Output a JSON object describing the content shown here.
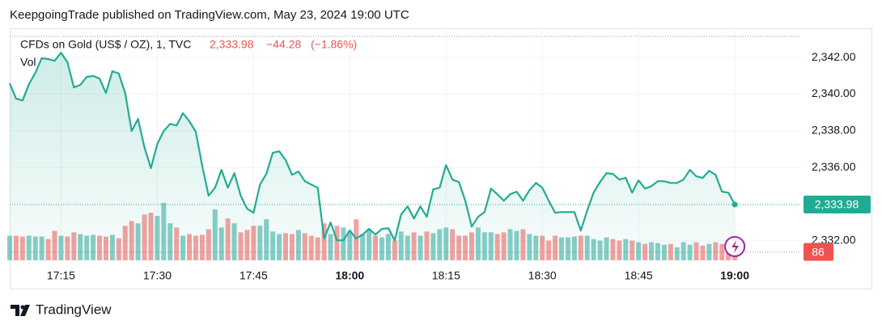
{
  "chart_data": {
    "type": "line",
    "title": "KeepgoingTrade published on TradingView.com, May 23, 2024 19:00 UTC",
    "symbol": "CFDs on Gold (US$ / OZ), 1, TVC",
    "last_label": "2,333.98",
    "change": "−44.28",
    "change_pct": "(−1.86%)",
    "volume_label": "Vol",
    "brand": "TradingView",
    "color": "#22ab94",
    "up_color": "#26a69a",
    "down_color": "#ef5350",
    "x": [
      "17:07",
      "17:08",
      "17:09",
      "17:10",
      "17:11",
      "17:12",
      "17:13",
      "17:14",
      "17:15",
      "17:16",
      "17:17",
      "17:18",
      "17:19",
      "17:20",
      "17:21",
      "17:22",
      "17:23",
      "17:24",
      "17:25",
      "17:26",
      "17:27",
      "17:28",
      "17:29",
      "17:30",
      "17:31",
      "17:32",
      "17:33",
      "17:34",
      "17:35",
      "17:36",
      "17:37",
      "17:38",
      "17:39",
      "17:40",
      "17:41",
      "17:42",
      "17:43",
      "17:44",
      "17:45",
      "17:46",
      "17:47",
      "17:48",
      "17:49",
      "17:50",
      "17:51",
      "17:52",
      "17:53",
      "17:54",
      "17:55",
      "17:56",
      "17:57",
      "17:58",
      "17:59",
      "18:00",
      "18:01",
      "18:02",
      "18:03",
      "18:04",
      "18:05",
      "18:06",
      "18:07",
      "18:08",
      "18:09",
      "18:10",
      "18:11",
      "18:12",
      "18:13",
      "18:14",
      "18:15",
      "18:16",
      "18:17",
      "18:18",
      "18:19",
      "18:20",
      "18:21",
      "18:22",
      "18:23",
      "18:24",
      "18:25",
      "18:26",
      "18:27",
      "18:28",
      "18:29",
      "18:30",
      "18:31",
      "18:32",
      "18:33",
      "18:34",
      "18:35",
      "18:36",
      "18:37",
      "18:38",
      "18:39",
      "18:40",
      "18:41",
      "18:42",
      "18:43",
      "18:44",
      "18:45",
      "18:46",
      "18:47",
      "18:48",
      "18:49",
      "18:50",
      "18:51",
      "18:52",
      "18:53",
      "18:54",
      "18:55",
      "18:56",
      "18:57",
      "18:58",
      "18:59",
      "19:00"
    ],
    "values": [
      2340.59,
      2339.75,
      2339.66,
      2340.54,
      2341.16,
      2341.96,
      2341.91,
      2341.82,
      2342.26,
      2341.74,
      2340.37,
      2340.5,
      2340.94,
      2340.99,
      2340.85,
      2340.06,
      2341.25,
      2341.12,
      2340.06,
      2337.99,
      2338.65,
      2337.1,
      2335.96,
      2337.28,
      2337.99,
      2338.38,
      2338.29,
      2338.96,
      2338.52,
      2337.94,
      2336.09,
      2334.46,
      2334.9,
      2335.87,
      2334.9,
      2335.69,
      2334.46,
      2333.75,
      2333.53,
      2335.07,
      2335.65,
      2336.8,
      2336.88,
      2336.4,
      2335.6,
      2335.78,
      2335.25,
      2335.07,
      2334.9,
      2332.12,
      2333.0,
      2332.03,
      2332.03,
      2332.56,
      2332.12,
      2332.34,
      2332.65,
      2332.34,
      2332.65,
      2332.69,
      2332.03,
      2333.44,
      2333.88,
      2333.22,
      2333.88,
      2333.31,
      2334.81,
      2334.9,
      2336.13,
      2335.34,
      2335.21,
      2334.19,
      2332.78,
      2333.31,
      2333.57,
      2334.85,
      2334.54,
      2334.19,
      2334.54,
      2334.68,
      2334.19,
      2334.76,
      2335.16,
      2334.9,
      2334.19,
      2333.53,
      2333.57,
      2333.57,
      2333.57,
      2332.56,
      2333.66,
      2334.63,
      2335.21,
      2335.69,
      2335.65,
      2335.34,
      2335.43,
      2334.63,
      2335.3,
      2334.85,
      2334.98,
      2335.25,
      2335.25,
      2335.16,
      2335.16,
      2335.34,
      2335.87,
      2335.52,
      2335.43,
      2335.82,
      2335.6,
      2334.68,
      2334.63,
      2333.98
    ],
    "volumes": [
      117,
      117,
      113,
      117,
      113,
      113,
      101,
      140,
      117,
      113,
      133,
      125,
      117,
      121,
      117,
      113,
      121,
      105,
      164,
      187,
      176,
      218,
      226,
      211,
      273,
      176,
      156,
      117,
      125,
      117,
      121,
      148,
      242,
      156,
      199,
      176,
      133,
      144,
      164,
      164,
      195,
      137,
      125,
      129,
      125,
      144,
      129,
      117,
      109,
      176,
      125,
      164,
      156,
      140,
      195,
      125,
      148,
      117,
      109,
      125,
      94,
      137,
      117,
      133,
      117,
      137,
      129,
      148,
      156,
      148,
      117,
      117,
      133,
      156,
      133,
      133,
      125,
      133,
      148,
      140,
      148,
      125,
      117,
      117,
      94,
      117,
      109,
      109,
      113,
      117,
      117,
      101,
      94,
      109,
      101,
      94,
      101,
      94,
      86,
      78,
      86,
      82,
      74,
      78,
      62,
      86,
      74,
      86,
      70,
      78,
      86,
      78,
      94,
      86
    ],
    "ylim": [
      2330.94,
      2343.59
    ],
    "yticks": [
      {
        "value": 2332,
        "label": "2,332.00"
      },
      {
        "value": 2336,
        "label": "2,336.00"
      },
      {
        "value": 2338,
        "label": "2,338.00"
      },
      {
        "value": 2340,
        "label": "2,340.00"
      },
      {
        "value": 2342,
        "label": "2,342.00"
      }
    ],
    "xticks": [
      "17:15",
      "17:30",
      "17:45",
      "18:00",
      "18:15",
      "18:30",
      "18:45",
      "19:00"
    ],
    "grid": true
  }
}
